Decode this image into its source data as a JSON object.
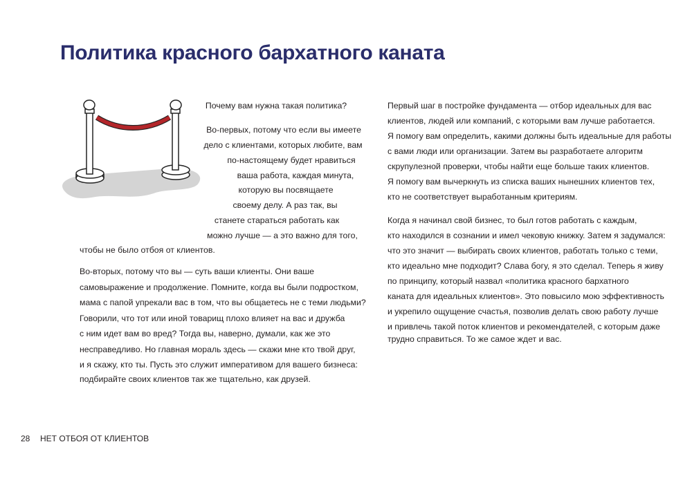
{
  "title": "Политика красного бархатного каната",
  "left_column": {
    "para1": [
      "Почему вам нужна такая политика?",
      "Во-первых, потому что если вы имеете",
      "дело с клиентами, которых любите, вам",
      "по-настоящему будет нравиться",
      "ваша работа, каждая минута,",
      "которую вы посвящаете",
      "своему делу. А раз так, вы",
      "станете стараться работать как",
      "можно лучше — а это важно для того,",
      "чтобы не было отбоя от клиентов."
    ],
    "para2": [
      "Во-вторых, потому что вы — суть ваши клиенты. Они ваше",
      "самовыражение и продолжение. Помните, когда вы были подростком,",
      "мама с папой упрекали вас в том, что вы общаетесь не с теми людьми?",
      "Говорили, что тот или иной товарищ плохо влияет на вас и дружба",
      "с ним идет вам во вред? Тогда вы, наверно, думали, как же это",
      "несправедливо. Но главная мораль здесь — скажи мне кто твой друг,",
      "и я скажу, кто ты. Пусть это служит императивом для вашего бизнеса:",
      "подбирайте своих клиентов так же тщательно, как друзей."
    ]
  },
  "right_column": {
    "para1": [
      "Первый шаг в постройке фундамента — отбор идеальных для вас",
      "клиентов, людей или компаний, с которыми вам лучше работается.",
      "Я помогу вам определить, какими должны быть идеальные для работы",
      "с вами люди или организации. Затем вы разработаете алгоритм",
      "скрупулезной проверки, чтобы найти еще больше таких клиентов.",
      "Я помогу вам вычеркнуть из списка ваших нынешних клиентов тех,",
      "кто не соответствует выработанным критериям."
    ],
    "para2": [
      "Когда я начинал свой бизнес, то был готов работать с каждым,",
      "кто находился в сознании и имел чековую книжку. Затем я задумался:",
      "что это значит — выбирать своих клиентов, работать только с теми,",
      "кто идеально мне подходит? Слава богу, я это сделал. Теперь я живу",
      "по принципу, который назвал «политика красного бархатного",
      "каната для идеальных клиентов». Это повысило мою эффективность",
      "и укрепило ощущение счастья, позволив делать свою работу лучше",
      "и привлечь такой поток клиентов и рекомендателей, с которым даже",
      "трудно справиться. То же самое ждет и вас."
    ]
  },
  "footer": {
    "page_number": "28",
    "running_title": "НЕТ ОТБОЯ ОТ КЛИЕНТОВ"
  },
  "colors": {
    "title": "#2a2d6b",
    "rope": "#b3262a",
    "shadow": "#d4d4d4"
  }
}
